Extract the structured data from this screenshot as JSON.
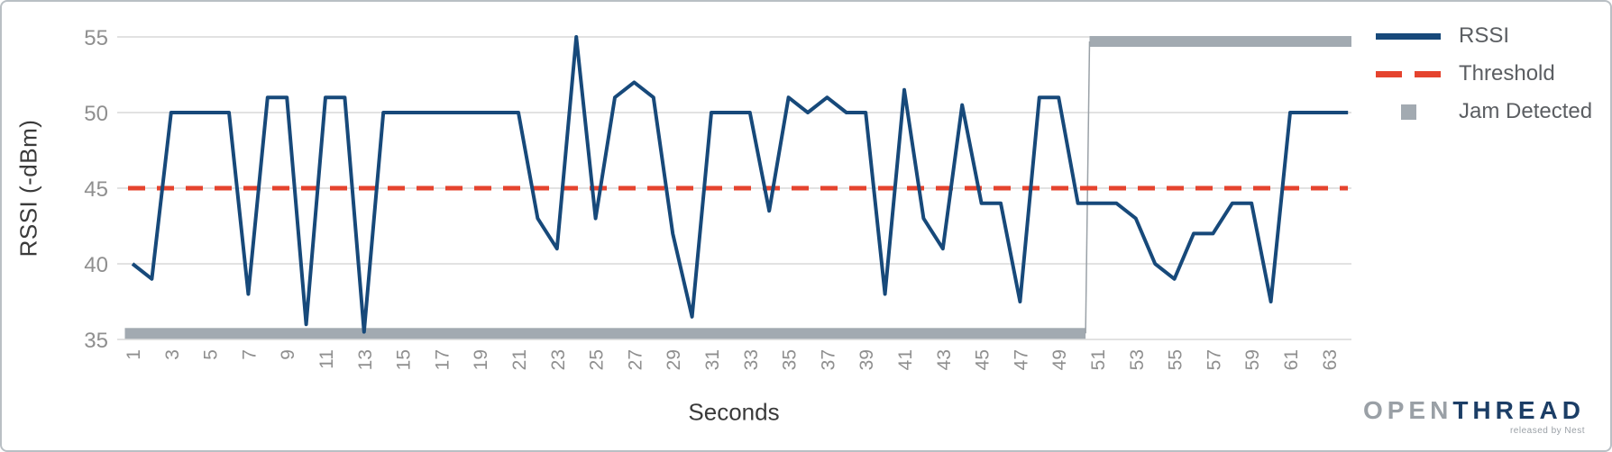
{
  "chart_data": {
    "type": "line",
    "title": "",
    "xlabel": "Seconds",
    "ylabel": "RSSI (-dBm)",
    "ylim": [
      35,
      55
    ],
    "xlim": [
      1,
      64
    ],
    "grid": true,
    "legend_position": "right",
    "y_ticks": [
      35,
      40,
      45,
      50,
      55
    ],
    "x_ticks": [
      1,
      3,
      5,
      7,
      9,
      11,
      13,
      15,
      17,
      19,
      21,
      23,
      25,
      27,
      29,
      31,
      33,
      35,
      37,
      39,
      41,
      43,
      45,
      47,
      49,
      51,
      53,
      55,
      57,
      59,
      61,
      63
    ],
    "x": [
      1,
      2,
      3,
      4,
      5,
      6,
      7,
      8,
      9,
      10,
      11,
      12,
      13,
      14,
      15,
      16,
      17,
      18,
      19,
      20,
      21,
      22,
      23,
      24,
      25,
      26,
      27,
      28,
      29,
      30,
      31,
      32,
      33,
      34,
      35,
      36,
      37,
      38,
      39,
      40,
      41,
      42,
      43,
      44,
      45,
      46,
      47,
      48,
      49,
      50,
      51,
      52,
      53,
      54,
      55,
      56,
      57,
      58,
      59,
      60,
      61,
      62,
      63,
      64
    ],
    "series": [
      {
        "name": "RSSI",
        "type": "line",
        "color": "#17497a",
        "values": [
          40,
          39,
          50,
          50,
          50,
          50,
          38,
          51,
          51,
          36,
          51,
          51,
          35.5,
          50,
          50,
          50,
          50,
          50,
          50,
          50,
          50,
          43,
          41,
          55,
          43,
          51,
          52,
          51,
          42,
          36.5,
          50,
          50,
          50,
          43.5,
          51,
          50,
          51,
          50,
          50,
          38,
          51.5,
          43,
          41,
          50.5,
          44,
          44,
          37.5,
          51,
          51,
          44,
          44,
          44,
          43,
          40,
          39,
          42,
          42,
          44,
          44,
          37.5,
          50,
          50,
          50,
          50
        ]
      },
      {
        "name": "Threshold",
        "type": "dashed-line",
        "color": "#e5432e",
        "value": 45
      },
      {
        "name": "Jam Detected",
        "type": "state-band",
        "color": "#a2aab1",
        "segments": [
          {
            "from": 1,
            "to": 50,
            "state": false,
            "level": 35.4
          },
          {
            "from": 51,
            "to": 64,
            "state": true,
            "level": 54.7
          }
        ]
      }
    ]
  },
  "axes": {
    "x_title": "Seconds",
    "y_title": "RSSI (-dBm)"
  },
  "legend": {
    "items": [
      {
        "label": "RSSI",
        "swatch": "navy-line"
      },
      {
        "label": "Threshold",
        "swatch": "red-dashed-line"
      },
      {
        "label": "Jam Detected",
        "swatch": "gray-square"
      }
    ]
  },
  "branding": {
    "logo_open": "OPEN",
    "logo_thread": "THREAD",
    "tagline": "released by Nest"
  },
  "colors": {
    "rssi_line": "#17497a",
    "threshold_line": "#e5432e",
    "jam_band": "#a2aab1",
    "gridline": "#d9d9d9",
    "tick_label": "#8f8f8f",
    "axis_title": "#3a3a3a",
    "legend_label": "#5b5e62",
    "frame_border": "#b9bfc4"
  }
}
